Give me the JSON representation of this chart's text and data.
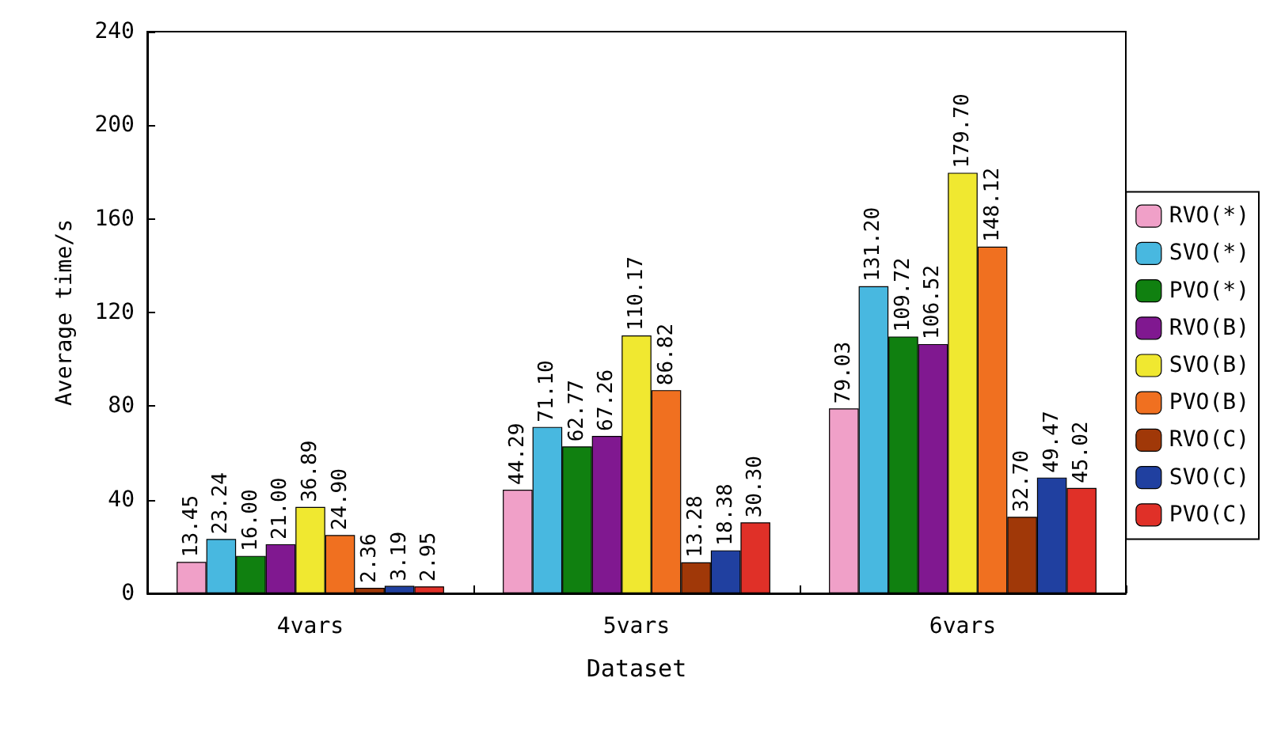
{
  "chart_data": {
    "type": "bar",
    "xlabel": "Dataset",
    "ylabel": "Average time/s",
    "categories": [
      "4vars",
      "5vars",
      "6vars"
    ],
    "series": [
      {
        "name": "RVO(*)",
        "color": "#f0a0c8",
        "values": [
          13.45,
          44.29,
          79.03
        ],
        "value_labels": [
          "13.45",
          "44.29",
          "79.03"
        ]
      },
      {
        "name": "SVO(*)",
        "color": "#48b8e0",
        "values": [
          23.24,
          71.1,
          131.2
        ],
        "value_labels": [
          "23.24",
          "71.10",
          "131.20"
        ]
      },
      {
        "name": "PVO(*)",
        "color": "#108010",
        "values": [
          16.0,
          62.77,
          109.72
        ],
        "value_labels": [
          "16.00",
          "62.77",
          "109.72"
        ]
      },
      {
        "name": "RVO(B)",
        "color": "#801890",
        "values": [
          21.0,
          67.26,
          106.52
        ],
        "value_labels": [
          "21.00",
          "67.26",
          "106.52"
        ]
      },
      {
        "name": "SVO(B)",
        "color": "#f0e830",
        "values": [
          36.89,
          110.17,
          179.7
        ],
        "value_labels": [
          "36.89",
          "110.17",
          "179.70"
        ]
      },
      {
        "name": "PVO(B)",
        "color": "#f07020",
        "values": [
          24.9,
          86.82,
          148.12
        ],
        "value_labels": [
          "24.90",
          "86.82",
          "148.12"
        ]
      },
      {
        "name": "RVO(C)",
        "color": "#a03808",
        "values": [
          2.36,
          13.28,
          32.7
        ],
        "value_labels": [
          "2.36",
          "13.28",
          "32.70"
        ]
      },
      {
        "name": "SVO(C)",
        "color": "#2040a0",
        "values": [
          3.19,
          18.38,
          49.47
        ],
        "value_labels": [
          "3.19",
          "18.38",
          "49.47"
        ]
      },
      {
        "name": "PVO(C)",
        "color": "#e03028",
        "values": [
          2.95,
          30.3,
          45.02
        ],
        "value_labels": [
          "2.95",
          "30.30",
          "45.02"
        ]
      }
    ],
    "ylim": [
      0,
      240
    ],
    "yticks": [
      0,
      40,
      80,
      120,
      160,
      200,
      240
    ],
    "grid": false,
    "legend": "right"
  }
}
